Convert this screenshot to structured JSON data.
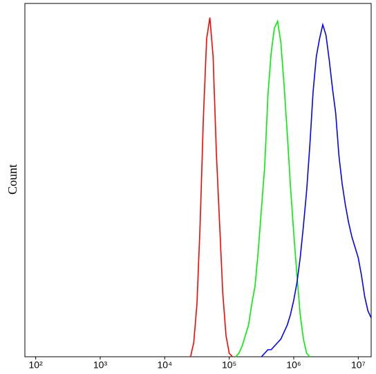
{
  "chart_data": {
    "type": "line",
    "ylabel": "Count",
    "xscale": "log",
    "xlim": [
      68,
      15848932
    ],
    "ylim": [
      0,
      100
    ],
    "xticks": [
      {
        "value": 100,
        "label": "10²"
      },
      {
        "value": 1000,
        "label": "10³"
      },
      {
        "value": 10000,
        "label": "10⁴"
      },
      {
        "value": 100000,
        "label": "10⁵"
      },
      {
        "value": 1000000,
        "label": "10⁶"
      },
      {
        "value": 10000000,
        "label": "10⁷"
      }
    ],
    "x": [
      25119,
      28184,
      31623,
      35481,
      39811,
      44668,
      50119,
      56234,
      63096,
      70795,
      79433,
      89125,
      100000,
      112202,
      125893,
      141254,
      158489,
      177828,
      199526,
      223872,
      251189,
      281838,
      316228,
      354813,
      398107,
      446684,
      501187,
      562341,
      630957,
      707946,
      794328,
      891251,
      1000000,
      1122018,
      1258925,
      1412538,
      1584893,
      1778279,
      1995262,
      2238721,
      2511886,
      2818383,
      3162278,
      3548134,
      3981072,
      4466836,
      5011872,
      5623413,
      6309573,
      7079458,
      7943282,
      8912509,
      10000000,
      11220185,
      12589254,
      14125375,
      15848932
    ],
    "series": [
      {
        "color": "#ff0000",
        "values": [
          0,
          4,
          15,
          38,
          68,
          90,
          96,
          85,
          58,
          38,
          18,
          6,
          1,
          0,
          null,
          null,
          null,
          null,
          null,
          null,
          null,
          null,
          null,
          null,
          null,
          null,
          null,
          null,
          null,
          null,
          null,
          null,
          null,
          null,
          null,
          null,
          null,
          null,
          null,
          null,
          null,
          null,
          null,
          null,
          null,
          null,
          null,
          null,
          null,
          null,
          null,
          null,
          null,
          null,
          null,
          null,
          null
        ]
      },
      {
        "color": "#00ee00",
        "values": [
          null,
          null,
          null,
          null,
          null,
          null,
          null,
          null,
          null,
          null,
          null,
          null,
          null,
          null,
          0,
          1,
          3,
          6,
          9,
          15,
          20,
          30,
          42,
          54,
          74,
          86,
          93,
          95,
          89,
          77,
          63,
          48,
          35,
          23,
          12,
          5,
          1,
          0,
          null,
          null,
          null,
          null,
          null,
          null,
          null,
          null,
          null,
          null,
          null,
          null,
          null,
          null,
          null,
          null,
          null,
          null,
          null
        ]
      },
      {
        "color": "#0000ff",
        "values": [
          null,
          null,
          null,
          null,
          null,
          null,
          null,
          null,
          null,
          null,
          null,
          null,
          null,
          null,
          null,
          null,
          null,
          null,
          null,
          null,
          null,
          null,
          0,
          1,
          2,
          2,
          3,
          4,
          5,
          7,
          9,
          12,
          16,
          21,
          28,
          37,
          47,
          60,
          75,
          85,
          90,
          94,
          91,
          84,
          76,
          69,
          57,
          49,
          43,
          38,
          34,
          31,
          28,
          23,
          17,
          13,
          11
        ]
      }
    ]
  }
}
